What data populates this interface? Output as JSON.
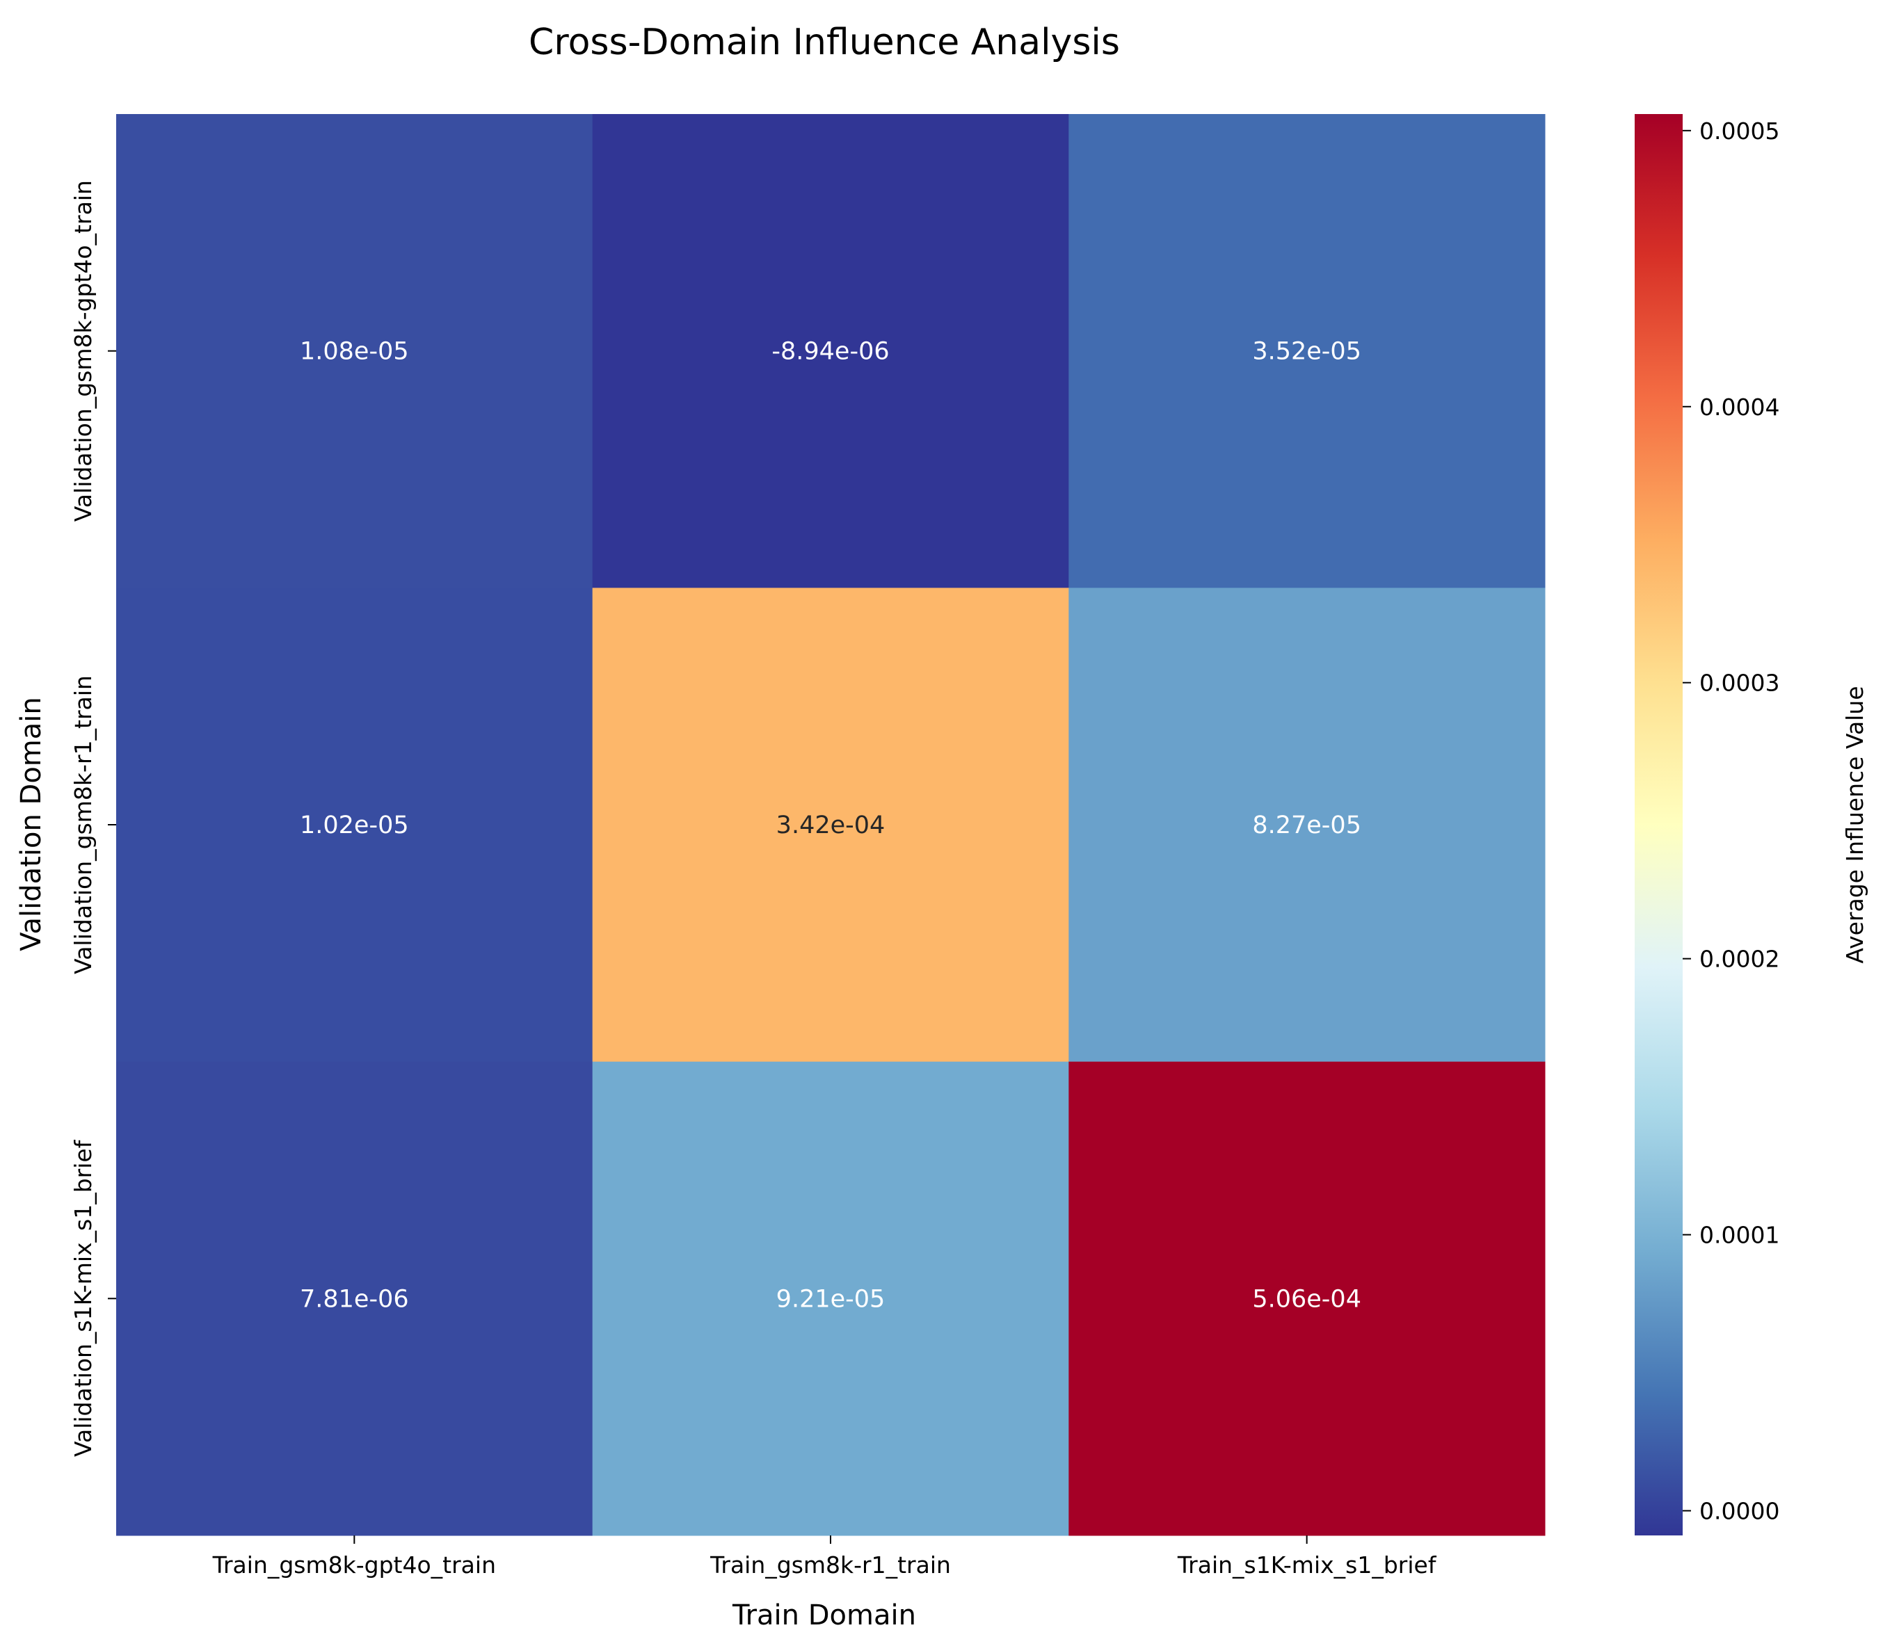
{
  "chart_data": {
    "type": "heatmap",
    "title": "Cross-Domain Influence Analysis",
    "xlabel": "Train Domain",
    "ylabel": "Validation Domain",
    "x_categories": [
      "Train_gsm8k-gpt4o_train",
      "Train_gsm8k-r1_train",
      "Train_s1K-mix_s1_brief"
    ],
    "y_categories": [
      "Validation_gsm8k-gpt4o_train",
      "Validation_gsm8k-r1_train",
      "Validation_s1K-mix_s1_brief"
    ],
    "values": [
      [
        1.08e-05,
        -8.94e-06,
        3.52e-05
      ],
      [
        1.02e-05,
        0.000342,
        8.27e-05
      ],
      [
        7.81e-06,
        9.21e-05,
        0.000506
      ]
    ],
    "value_labels": [
      [
        "1.08e-05",
        "-8.94e-06",
        "3.52e-05"
      ],
      [
        "1.02e-05",
        "3.42e-04",
        "8.27e-05"
      ],
      [
        "7.81e-06",
        "9.21e-05",
        "5.06e-04"
      ]
    ],
    "colorbar": {
      "label": "Average Influence Value",
      "min": -8.94e-06,
      "max": 0.000506,
      "ticks": [
        0.0,
        0.0001,
        0.0002,
        0.0003,
        0.0004,
        0.0005
      ],
      "tick_labels": [
        "0.0000",
        "0.0001",
        "0.0002",
        "0.0003",
        "0.0004",
        "0.0005"
      ],
      "colormap": "RdYlBu_r"
    }
  }
}
